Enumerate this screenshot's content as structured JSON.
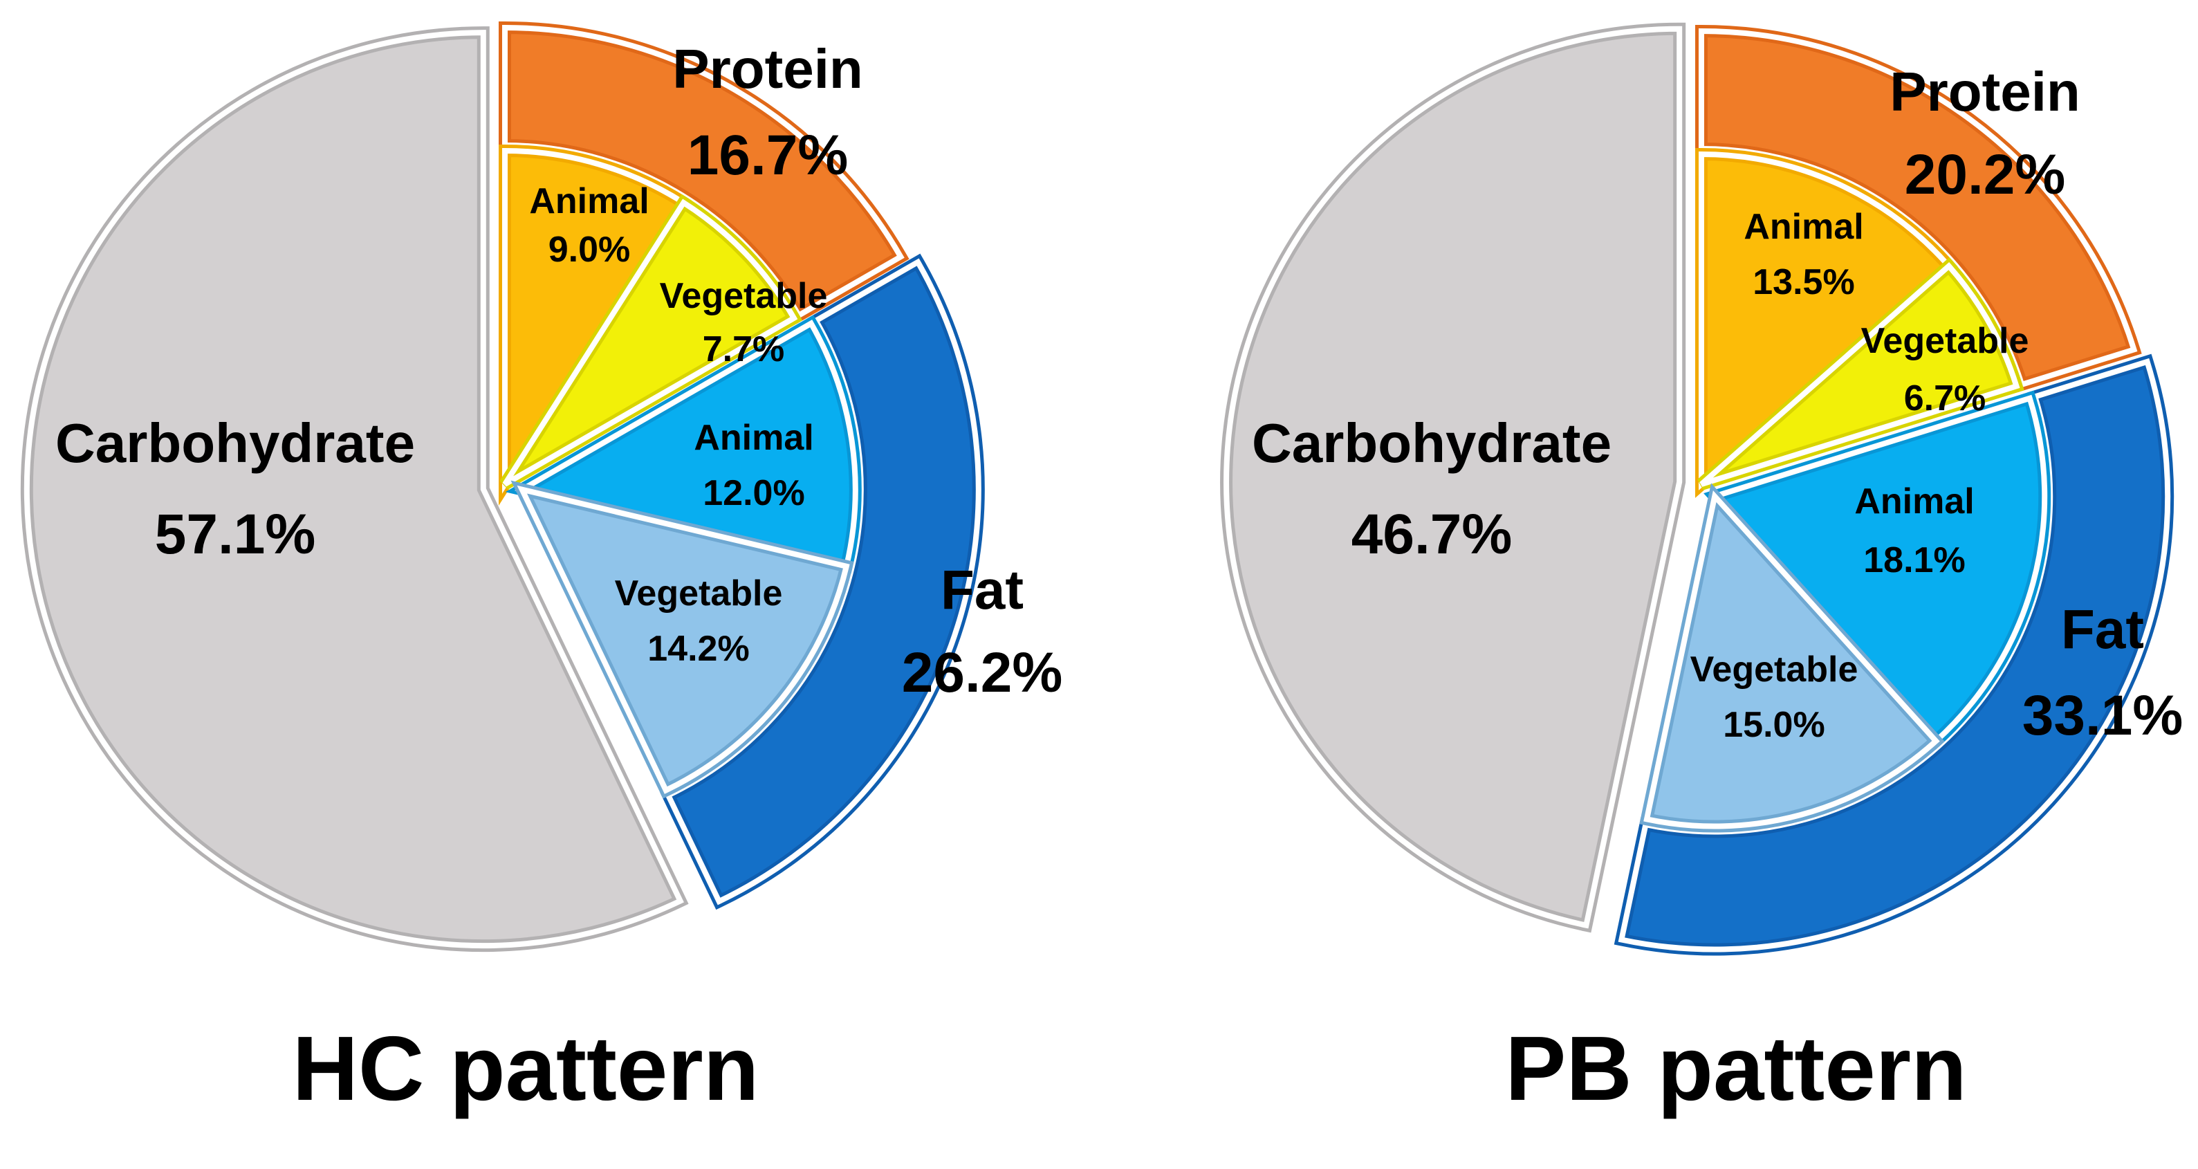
{
  "chart_data": [
    {
      "type": "pie",
      "title": "HC pattern",
      "slices": [
        {
          "key": "carb",
          "name": "Carbohydrate",
          "value": 57.1,
          "label": "57.1%"
        },
        {
          "key": "protein",
          "name": "Protein",
          "value": 16.7,
          "label": "16.7%",
          "sub": [
            {
              "key": "protein_animal",
              "name": "Animal",
              "value": 9.0,
              "label": "9.0%"
            },
            {
              "key": "protein_vegetable",
              "name": "Vegetable",
              "value": 7.7,
              "label": "7.7%"
            }
          ]
        },
        {
          "key": "fat",
          "name": "Fat",
          "value": 26.2,
          "label": "26.2%",
          "sub": [
            {
              "key": "fat_animal",
              "name": "Animal",
              "value": 12.0,
              "label": "12.0%"
            },
            {
              "key": "fat_vegetable",
              "name": "Vegetable",
              "value": 14.2,
              "label": "14.2%"
            }
          ]
        }
      ]
    },
    {
      "type": "pie",
      "title": "PB pattern",
      "slices": [
        {
          "key": "carb",
          "name": "Carbohydrate",
          "value": 46.7,
          "label": "46.7%"
        },
        {
          "key": "protein",
          "name": "Protein",
          "value": 20.2,
          "label": "20.2%",
          "sub": [
            {
              "key": "protein_animal",
              "name": "Animal",
              "value": 13.5,
              "label": "13.5%"
            },
            {
              "key": "protein_vegetable",
              "name": "Vegetable",
              "value": 6.7,
              "label": "6.7%"
            }
          ]
        },
        {
          "key": "fat",
          "name": "Fat",
          "value": 33.1,
          "label": "33.1%",
          "sub": [
            {
              "key": "fat_animal",
              "name": "Animal",
              "value": 18.1,
              "label": "18.1%"
            },
            {
              "key": "fat_vegetable",
              "name": "Vegetable",
              "value": 15.0,
              "label": "15.0%"
            }
          ]
        }
      ]
    }
  ],
  "colors": {
    "carb": "#d3d0d1",
    "carb_edge": "#b3b1b2",
    "protein": "#f07c28",
    "protein_edge": "#e06818",
    "protein_animal": "#fcbc08",
    "protein_animal_edge": "#f2aa00",
    "protein_vegetable": "#f2f008",
    "protein_vegetable_edge": "#d8d400",
    "fat": "#1470c8",
    "fat_edge": "#0f5eb0",
    "fat_animal": "#08aef0",
    "fat_animal_edge": "#0896d6",
    "fat_vegetable": "#90c4ea",
    "fat_vegetable_edge": "#6fa8d2"
  }
}
